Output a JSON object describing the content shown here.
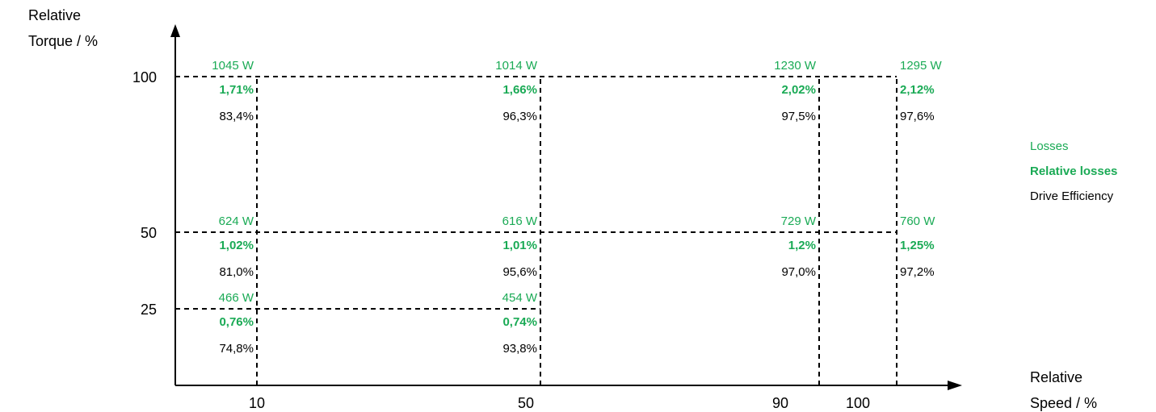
{
  "colors": {
    "losses": "#1aaa55",
    "efficiency": "#000000",
    "axis": "#000000"
  },
  "chart_data": {
    "type": "table",
    "ylabel_line1": "Relative",
    "ylabel_line2": "Torque / %",
    "xlabel_line1": "Relative",
    "xlabel_line2": "Speed / %",
    "x_ticks": [
      "10",
      "50",
      "90",
      "100"
    ],
    "y_ticks": [
      "100",
      "50",
      "25"
    ],
    "legend": [
      "Losses",
      "Relative losses",
      "Drive Efficiency"
    ],
    "points": [
      {
        "speed": "10",
        "torque": "100",
        "losses": "1045 W",
        "relative_losses": "1,71%",
        "efficiency": "83,4%"
      },
      {
        "speed": "50",
        "torque": "100",
        "losses": "1014 W",
        "relative_losses": "1,66%",
        "efficiency": "96,3%"
      },
      {
        "speed": "90",
        "torque": "100",
        "losses": "1230 W",
        "relative_losses": "2,02%",
        "efficiency": "97,5%"
      },
      {
        "speed": "100",
        "torque": "100",
        "losses": "1295 W",
        "relative_losses": "2,12%",
        "efficiency": "97,6%"
      },
      {
        "speed": "10",
        "torque": "50",
        "losses": "624 W",
        "relative_losses": "1,02%",
        "efficiency": "81,0%"
      },
      {
        "speed": "50",
        "torque": "50",
        "losses": "616 W",
        "relative_losses": "1,01%",
        "efficiency": "95,6%"
      },
      {
        "speed": "90",
        "torque": "50",
        "losses": "729 W",
        "relative_losses": "1,2%",
        "efficiency": "97,0%"
      },
      {
        "speed": "100",
        "torque": "50",
        "losses": "760 W",
        "relative_losses": "1,25%",
        "efficiency": "97,2%"
      },
      {
        "speed": "10",
        "torque": "25",
        "losses": "466 W",
        "relative_losses": "0,76%",
        "efficiency": "74,8%"
      },
      {
        "speed": "50",
        "torque": "25",
        "losses": "454 W",
        "relative_losses": "0,74%",
        "efficiency": "93,8%"
      }
    ]
  }
}
